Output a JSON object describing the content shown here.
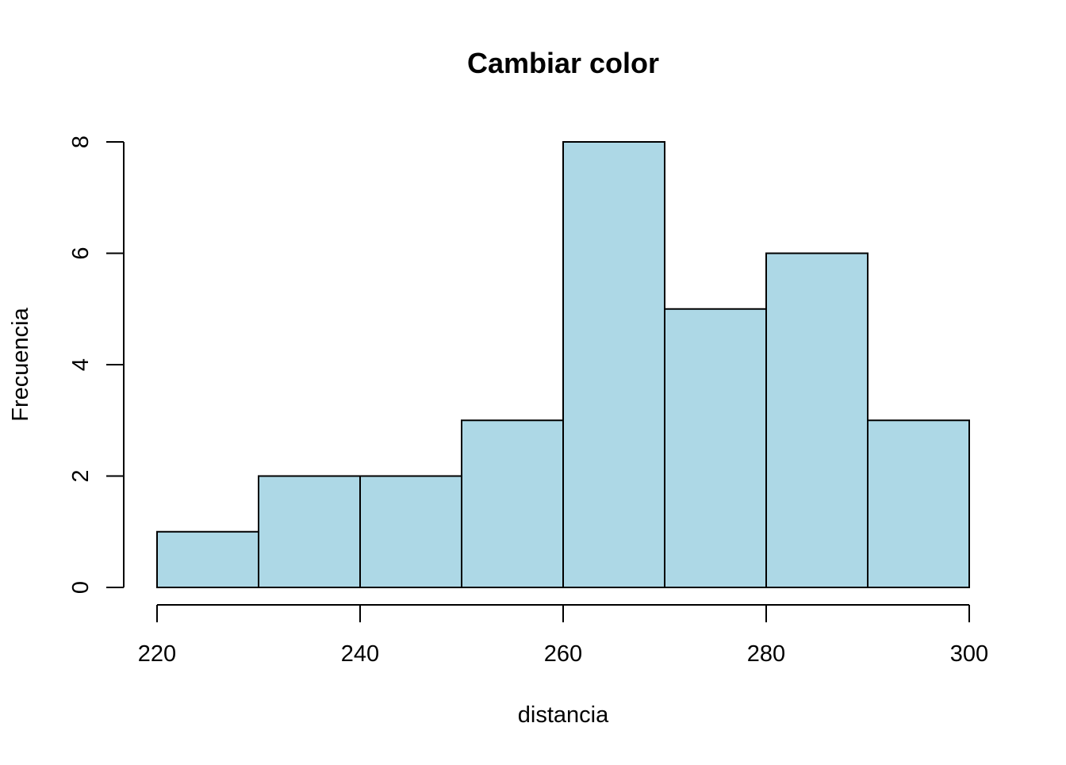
{
  "chart_data": {
    "type": "bar",
    "title": "Cambiar color",
    "xlabel": "distancia",
    "ylabel": "Frecuencia",
    "bin_edges": [
      220,
      230,
      240,
      250,
      260,
      270,
      280,
      290,
      300
    ],
    "values": [
      1,
      2,
      2,
      3,
      8,
      5,
      6,
      3
    ],
    "xlim": [
      220,
      300
    ],
    "ylim": [
      0,
      8
    ],
    "x_ticks": [
      220,
      240,
      260,
      280,
      300
    ],
    "y_ticks": [
      0,
      2,
      4,
      6,
      8
    ],
    "grid": false,
    "bar_color": "#ADD8E6",
    "border_color": "#000000"
  }
}
